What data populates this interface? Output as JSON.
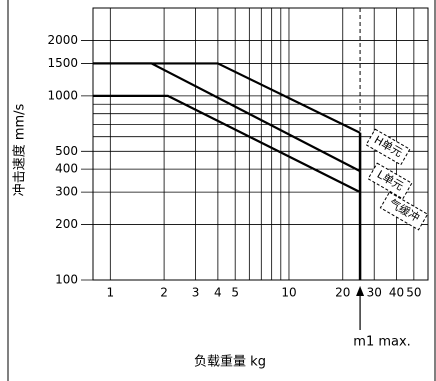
{
  "chart_data": {
    "type": "line",
    "x_label": "负载重量 kg",
    "y_label": "冲击速度 mm/s",
    "log_x": true,
    "log_y": true,
    "grid": true,
    "xlim": [
      0.8,
      60
    ],
    "ylim": [
      100,
      3000
    ],
    "xticks": [
      1,
      2,
      3,
      4,
      5,
      10,
      20,
      30,
      40,
      50
    ],
    "x_minor": [
      6,
      7,
      8,
      9
    ],
    "yticks": [
      100,
      200,
      300,
      400,
      500,
      1000,
      1500,
      2000
    ],
    "y_minor": [
      600,
      700,
      800,
      900
    ],
    "series": [
      {
        "color": "#000000",
        "x": [
          0.8,
          4,
          25
        ],
        "values": [
          1500,
          1500,
          630
        ]
      },
      {
        "color": "#000000",
        "x": [
          0.8,
          1.7,
          25
        ],
        "values": [
          1500,
          1500,
          390
        ]
      },
      {
        "color": "#000000",
        "x": [
          0.8,
          2.1,
          25
        ],
        "values": [
          1000,
          1000,
          300
        ]
      }
    ],
    "limit": {
      "x": 25,
      "label": "m1 max."
    },
    "annotations": [
      "H单元",
      "L单元",
      "气缓冲"
    ]
  }
}
